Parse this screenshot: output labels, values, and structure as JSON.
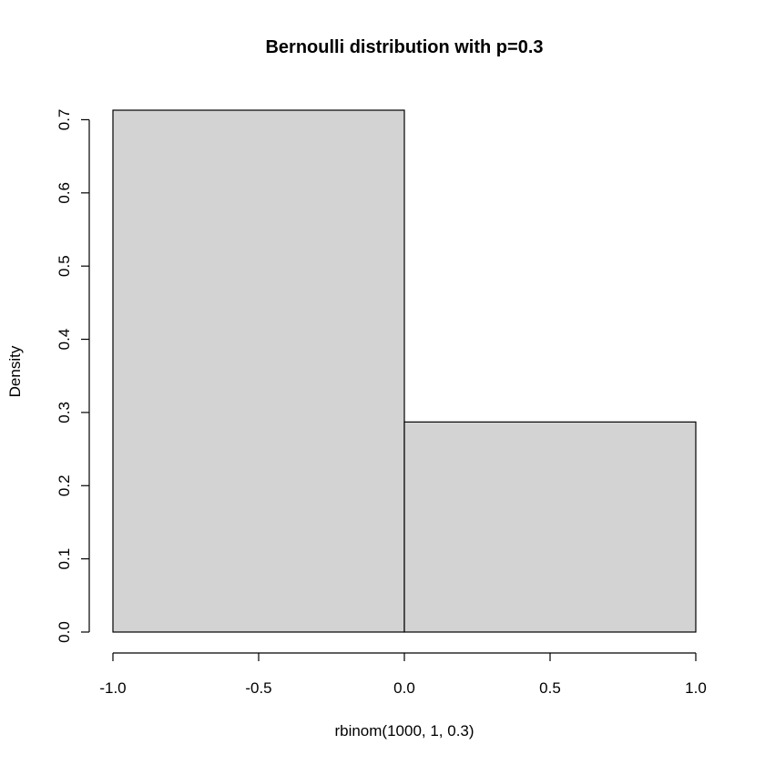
{
  "chart_data": {
    "type": "bar",
    "title": "Bernoulli distribution with p=0.3",
    "xlabel": "rbinom(1000, 1, 0.3)",
    "ylabel": "Density",
    "xlim": [
      -1.0,
      1.0
    ],
    "ylim": [
      0.0,
      0.7
    ],
    "x_ticks": [
      -1.0,
      -0.5,
      0.0,
      0.5,
      1.0
    ],
    "x_tick_labels": [
      "-1.0",
      "-0.5",
      "0.0",
      "0.5",
      "1.0"
    ],
    "y_ticks": [
      0.0,
      0.1,
      0.2,
      0.3,
      0.4,
      0.5,
      0.6,
      0.7
    ],
    "y_tick_labels": [
      "0.0",
      "0.1",
      "0.2",
      "0.3",
      "0.4",
      "0.5",
      "0.6",
      "0.7"
    ],
    "bins": [
      {
        "x0": -1.0,
        "x1": 0.0,
        "value": 0.713
      },
      {
        "x0": 0.0,
        "x1": 1.0,
        "value": 0.287
      }
    ],
    "grid": false,
    "legend": "none",
    "colors": {
      "bar_fill": "#d3d3d3",
      "bar_stroke": "#000000",
      "axis": "#000000",
      "background": "#ffffff"
    }
  }
}
